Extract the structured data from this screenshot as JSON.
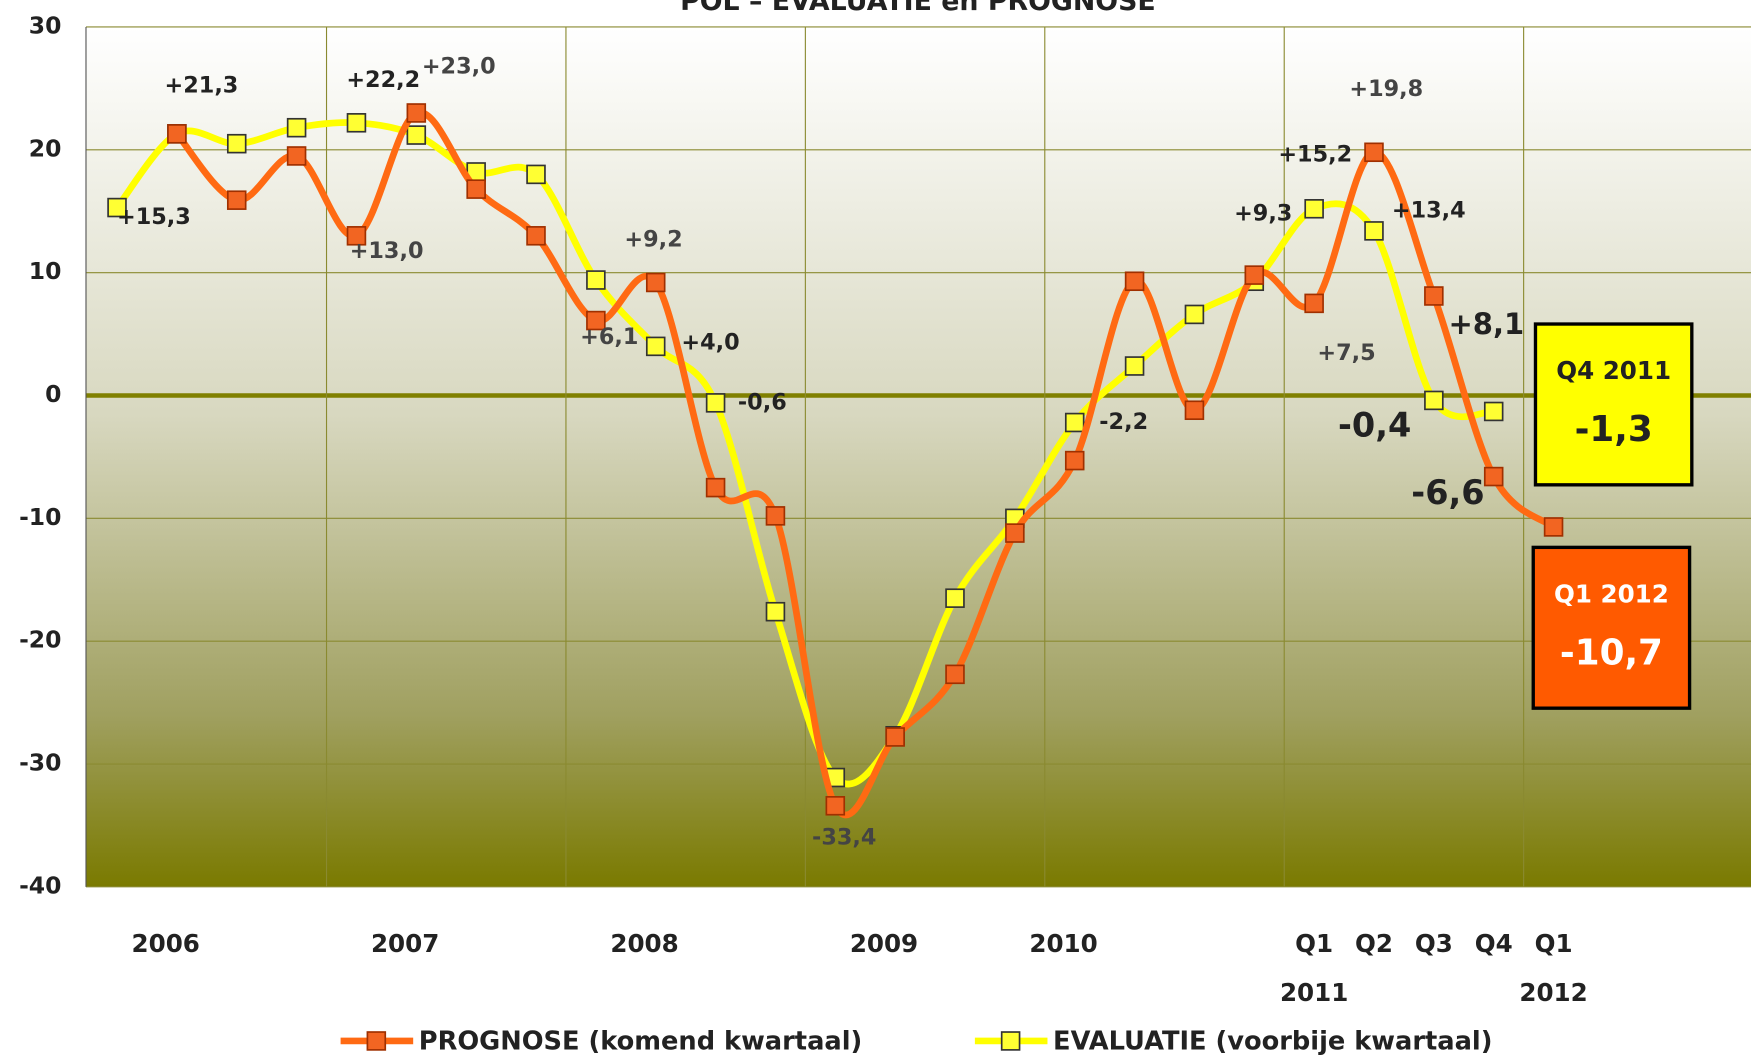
{
  "chart_data": {
    "type": "line",
    "title": "POL – EVALUATIE en PROGNOSE",
    "categories": [
      null,
      "2006",
      null,
      null,
      null,
      "2007",
      null,
      null,
      null,
      "2008",
      null,
      null,
      null,
      "2009",
      null,
      null,
      "2010",
      null,
      null,
      null,
      "Q1",
      "Q2",
      "Q3",
      "Q4",
      "Q1"
    ],
    "x_group_labels": [
      {
        "index": 20,
        "label": "2011"
      },
      {
        "index": 24,
        "label": "2012"
      }
    ],
    "series": [
      {
        "name": "PROGNOSE (komend kwartaal)",
        "color": "#ff6a13",
        "marker_color": "#f26522",
        "values": [
          null,
          21.3,
          15.9,
          19.5,
          13.0,
          23.0,
          16.8,
          13.0,
          6.1,
          9.2,
          -7.5,
          -9.8,
          -33.4,
          -27.8,
          -22.7,
          -11.2,
          -5.3,
          9.3,
          -1.2,
          9.8,
          7.5,
          19.8,
          8.1,
          -6.6,
          -10.7
        ],
        "value_labels": [
          null,
          null,
          null,
          null,
          "+13,0",
          "+23,0",
          null,
          null,
          "+6,1",
          "+9,2",
          null,
          null,
          "-33,4",
          null,
          null,
          null,
          null,
          null,
          null,
          null,
          "+7,5",
          "+19,8",
          "+8,1",
          "-6,6",
          "-10,7"
        ]
      },
      {
        "name": "EVALUATIE (voorbije kwartaal)",
        "color": "#ffff00",
        "marker_color": "#ffff33",
        "values": [
          15.3,
          21.3,
          20.5,
          21.8,
          22.2,
          21.2,
          18.2,
          18.0,
          9.4,
          4.0,
          -0.6,
          -17.6,
          -31.1,
          -27.7,
          -16.5,
          -10.0,
          -2.2,
          2.4,
          6.6,
          9.3,
          15.2,
          13.4,
          -0.4,
          -1.3,
          null
        ],
        "value_labels": [
          "+15,3",
          "+21,3",
          null,
          null,
          "+22,2",
          null,
          null,
          null,
          null,
          "+4,0",
          "-0,6",
          null,
          null,
          null,
          null,
          null,
          "-2,2",
          null,
          null,
          "+9,3",
          "+15,2",
          "+13,4",
          "-0,4",
          "-1,3",
          null
        ]
      }
    ],
    "callouts": [
      {
        "title": "Q4 2011"
      },
      {
        "title": "Q1 2012"
      }
    ],
    "ylim": [
      -40,
      30
    ],
    "yticks": [
      -40,
      -30,
      -20,
      -10,
      0,
      10,
      20,
      30
    ],
    "grid": true,
    "legend": "bottom"
  }
}
